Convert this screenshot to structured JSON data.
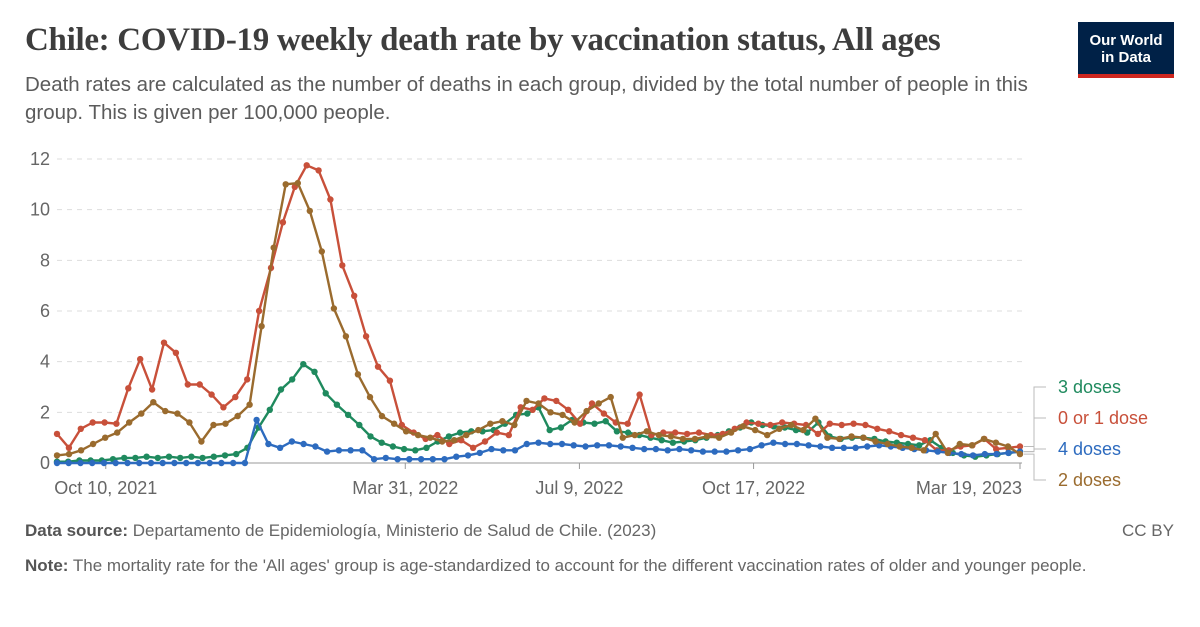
{
  "header": {
    "title": "Chile: COVID-19 weekly death rate by vaccination status, All ages",
    "subtitle": "Death rates are calculated as the number of deaths in each group, divided by the total number of people in this group. This is given per 100,000 people.",
    "logo_line1": "Our World",
    "logo_line2": "in Data",
    "logo_bg": "#002147",
    "logo_accent": "#ce261e"
  },
  "footer": {
    "source_label": "Data source:",
    "source_text": "Departamento de Epidemiología, Ministerio de Salud de Chile. (2023)",
    "license": "CC BY",
    "note_label": "Note:",
    "note_text": "The mortality rate for the 'All ages' group is age-standardized to account for the different vaccination rates of older and younger people."
  },
  "chart_data": {
    "type": "line",
    "x_axis": {
      "type": "date",
      "start": "2021-09-12",
      "end": "2023-03-19",
      "ticks": [
        "Oct 10, 2021",
        "Mar 31, 2022",
        "Jul 9, 2022",
        "Oct 17, 2022",
        "Mar 19, 2023"
      ],
      "tick_dates": [
        "2021-10-10",
        "2022-03-31",
        "2022-07-09",
        "2022-10-17",
        "2023-03-19"
      ]
    },
    "y_axis": {
      "min": 0,
      "max": 12,
      "ticks": [
        0,
        2,
        4,
        6,
        8,
        10,
        12
      ],
      "grid": true
    },
    "legend": "right-labels",
    "series": [
      {
        "name": "3 doses",
        "color": "#1f8a5e",
        "values": [
          0.05,
          0.05,
          0.1,
          0.1,
          0.1,
          0.15,
          0.2,
          0.2,
          0.25,
          0.2,
          0.25,
          0.2,
          0.25,
          0.2,
          0.25,
          0.3,
          0.35,
          0.6,
          1.4,
          2.1,
          2.9,
          3.3,
          3.9,
          3.6,
          2.75,
          2.3,
          1.9,
          1.5,
          1.05,
          0.8,
          0.65,
          0.55,
          0.5,
          0.6,
          0.85,
          1.05,
          1.2,
          1.25,
          1.25,
          1.3,
          1.55,
          1.9,
          1.95,
          2.2,
          1.3,
          1.4,
          1.7,
          1.6,
          1.55,
          1.65,
          1.25,
          1.2,
          1.1,
          1.0,
          0.9,
          0.8,
          0.85,
          0.9,
          1.0,
          1.1,
          1.25,
          1.4,
          1.6,
          1.5,
          1.45,
          1.4,
          1.3,
          1.2,
          1.6,
          1.05,
          0.95,
          1.0,
          1.0,
          0.95,
          0.85,
          0.8,
          0.75,
          0.7,
          0.9,
          0.6,
          0.4,
          0.3,
          0.25,
          0.3,
          0.35,
          0.4,
          0.45
        ]
      },
      {
        "name": "0 or 1 dose",
        "color": "#c8503a",
        "values": [
          1.15,
          0.6,
          1.35,
          1.6,
          1.6,
          1.55,
          2.95,
          4.1,
          2.9,
          4.75,
          4.35,
          3.1,
          3.1,
          2.7,
          2.2,
          2.6,
          3.3,
          6.0,
          7.7,
          9.5,
          10.9,
          11.75,
          11.55,
          10.4,
          7.8,
          6.6,
          5.0,
          3.8,
          3.25,
          1.5,
          1.2,
          0.95,
          1.1,
          0.75,
          0.9,
          0.6,
          0.85,
          1.2,
          1.1,
          2.2,
          2.1,
          2.55,
          2.45,
          2.1,
          1.55,
          2.35,
          1.95,
          1.6,
          1.55,
          2.7,
          1.1,
          1.2,
          1.2,
          1.15,
          1.2,
          1.1,
          1.15,
          1.35,
          1.6,
          1.55,
          1.5,
          1.6,
          1.55,
          1.5,
          1.15,
          1.55,
          1.5,
          1.55,
          1.5,
          1.35,
          1.25,
          1.1,
          1.0,
          0.9,
          0.5,
          0.5,
          0.65,
          0.7,
          0.95,
          0.55,
          0.6,
          0.65
        ]
      },
      {
        "name": "4 doses",
        "color": "#2d6bbf",
        "values": [
          0,
          0,
          0,
          0,
          0,
          0,
          0,
          0,
          0,
          0,
          0,
          0,
          0,
          0,
          0,
          0,
          0,
          1.7,
          0.75,
          0.6,
          0.85,
          0.75,
          0.65,
          0.45,
          0.5,
          0.5,
          0.5,
          0.15,
          0.2,
          0.15,
          0.15,
          0.15,
          0.15,
          0.15,
          0.25,
          0.3,
          0.4,
          0.55,
          0.5,
          0.5,
          0.75,
          0.8,
          0.75,
          0.75,
          0.7,
          0.65,
          0.7,
          0.7,
          0.65,
          0.6,
          0.55,
          0.55,
          0.5,
          0.55,
          0.5,
          0.45,
          0.45,
          0.45,
          0.5,
          0.55,
          0.7,
          0.8,
          0.75,
          0.75,
          0.7,
          0.65,
          0.6,
          0.6,
          0.6,
          0.65,
          0.7,
          0.65,
          0.6,
          0.55,
          0.5,
          0.45,
          0.4,
          0.35,
          0.3,
          0.35,
          0.35,
          0.4,
          0.45
        ]
      },
      {
        "name": "2 doses",
        "color": "#9a6b2e",
        "values": [
          0.3,
          0.35,
          0.5,
          0.75,
          1.0,
          1.2,
          1.6,
          1.95,
          2.4,
          2.05,
          1.95,
          1.6,
          0.85,
          1.5,
          1.55,
          1.85,
          2.3,
          5.4,
          8.5,
          11.0,
          11.05,
          9.95,
          8.35,
          6.1,
          5.0,
          3.5,
          2.6,
          1.85,
          1.55,
          1.25,
          1.1,
          1.0,
          0.85,
          0.9,
          1.1,
          1.3,
          1.55,
          1.65,
          1.5,
          2.45,
          2.35,
          2.0,
          1.9,
          1.6,
          2.05,
          2.35,
          2.6,
          1.0,
          1.1,
          1.25,
          1.1,
          1.05,
          0.95,
          0.95,
          1.05,
          1.0,
          1.2,
          1.45,
          1.3,
          1.1,
          1.35,
          1.5,
          1.3,
          1.75,
          1.0,
          0.95,
          1.05,
          1.0,
          0.85,
          0.75,
          0.65,
          0.6,
          0.5,
          1.15,
          0.4,
          0.75,
          0.7,
          0.95,
          0.8,
          0.65,
          0.35
        ]
      }
    ]
  }
}
